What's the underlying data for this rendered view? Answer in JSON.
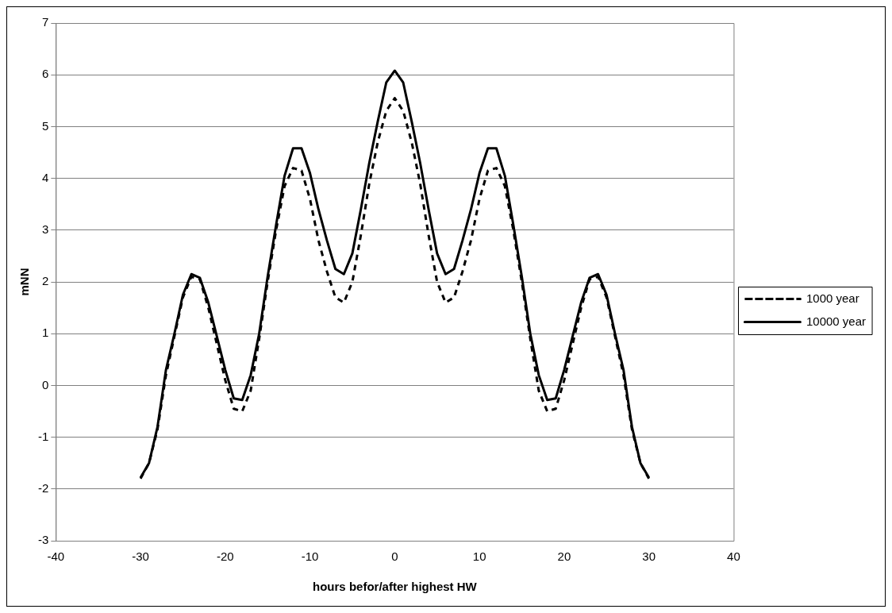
{
  "chart_data": {
    "type": "line",
    "xlabel": "hours befor/after highest HW",
    "ylabel": "mNN",
    "x": [
      -30,
      -29,
      -28,
      -27,
      -26,
      -25,
      -24,
      -23,
      -22,
      -21,
      -20,
      -19,
      -18,
      -17,
      -16,
      -15,
      -14,
      -13,
      -12,
      -11,
      -10,
      -9,
      -8,
      -7,
      -6,
      -5,
      -4,
      -3,
      -2,
      -1,
      0,
      1,
      2,
      3,
      4,
      5,
      6,
      7,
      8,
      9,
      10,
      11,
      12,
      13,
      14,
      15,
      16,
      17,
      18,
      19,
      20,
      21,
      22,
      23,
      24,
      25,
      26,
      27,
      28,
      29,
      30
    ],
    "series": [
      {
        "name": "1000 year",
        "color": "#000000",
        "line_style": "dashed",
        "values": [
          -1.8,
          -1.5,
          -0.85,
          0.2,
          0.95,
          1.7,
          2.1,
          2.05,
          1.5,
          0.8,
          0.1,
          -0.45,
          -0.5,
          -0.1,
          0.9,
          2.0,
          3.0,
          3.85,
          4.2,
          4.15,
          3.6,
          2.8,
          2.2,
          1.7,
          1.6,
          2.0,
          2.9,
          3.9,
          4.7,
          5.3,
          5.55,
          5.3,
          4.7,
          3.9,
          2.9,
          2.0,
          1.6,
          1.7,
          2.2,
          2.8,
          3.6,
          4.15,
          4.2,
          3.85,
          3.0,
          2.0,
          0.9,
          -0.1,
          -0.5,
          -0.45,
          0.1,
          0.8,
          1.5,
          2.05,
          2.1,
          1.7,
          0.95,
          0.2,
          -0.85,
          -1.5,
          -1.8
        ]
      },
      {
        "name": "10000 year",
        "color": "#000000",
        "line_style": "solid",
        "values": [
          -1.78,
          -1.5,
          -0.8,
          0.3,
          1.0,
          1.75,
          2.15,
          2.08,
          1.6,
          0.95,
          0.3,
          -0.25,
          -0.28,
          0.2,
          1.0,
          2.1,
          3.1,
          4.05,
          4.58,
          4.58,
          4.1,
          3.4,
          2.8,
          2.25,
          2.15,
          2.55,
          3.4,
          4.3,
          5.1,
          5.85,
          6.08,
          5.85,
          5.1,
          4.3,
          3.4,
          2.55,
          2.15,
          2.25,
          2.8,
          3.4,
          4.1,
          4.58,
          4.58,
          4.05,
          3.1,
          2.1,
          1.0,
          0.2,
          -0.28,
          -0.25,
          0.3,
          0.95,
          1.6,
          2.08,
          2.15,
          1.75,
          1.0,
          0.3,
          -0.8,
          -1.5,
          -1.78
        ]
      }
    ],
    "xlim": [
      -40,
      40
    ],
    "xticks": [
      -40,
      -30,
      -20,
      -10,
      0,
      10,
      20,
      30,
      40
    ],
    "ylim": [
      -3,
      7
    ],
    "yticks": [
      -3,
      -2,
      -1,
      0,
      1,
      2,
      3,
      4,
      5,
      6,
      7
    ],
    "grid": "y",
    "legend": "right",
    "marker": "none"
  }
}
